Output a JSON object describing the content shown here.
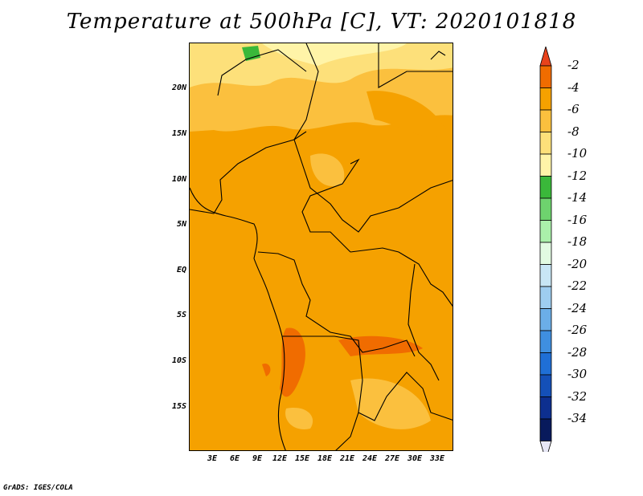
{
  "title": "Temperature at 500hPa [C], VT: 2020101818",
  "footer": "GrADS: IGES/COLA",
  "map": {
    "lat_labels": [
      "20N",
      "15N",
      "10N",
      "5N",
      "EQ",
      "5S",
      "10S",
      "15S"
    ],
    "lon_labels": [
      "3E",
      "6E",
      "9E",
      "12E",
      "15E",
      "18E",
      "21E",
      "24E",
      "27E",
      "30E",
      "33E"
    ]
  },
  "colorbar": {
    "labels": [
      "-2",
      "-4",
      "-6",
      "-8",
      "-10",
      "-12",
      "-14",
      "-16",
      "-18",
      "-20",
      "-22",
      "-24",
      "-26",
      "-28",
      "-30",
      "-32",
      "-34"
    ],
    "colors": [
      "#e8431c",
      "#f06c00",
      "#f5a100",
      "#fbc03e",
      "#fde07a",
      "#fff4a8",
      "#3ab83a",
      "#6ed36e",
      "#aaf0aa",
      "#e2fbe2",
      "#c8e6f5",
      "#9ecdf0",
      "#6baee8",
      "#3f8fe0",
      "#1f6fd6",
      "#1450b8",
      "#0d2f8f",
      "#081a5c",
      "#e6e6f5"
    ]
  },
  "colors": {
    "dominant_field": "#f5a100",
    "warm_patches": "#f06c00",
    "north_band": "#fbc03e",
    "pale_band": "#fff4a8",
    "green_patch": "#3ab83a"
  }
}
